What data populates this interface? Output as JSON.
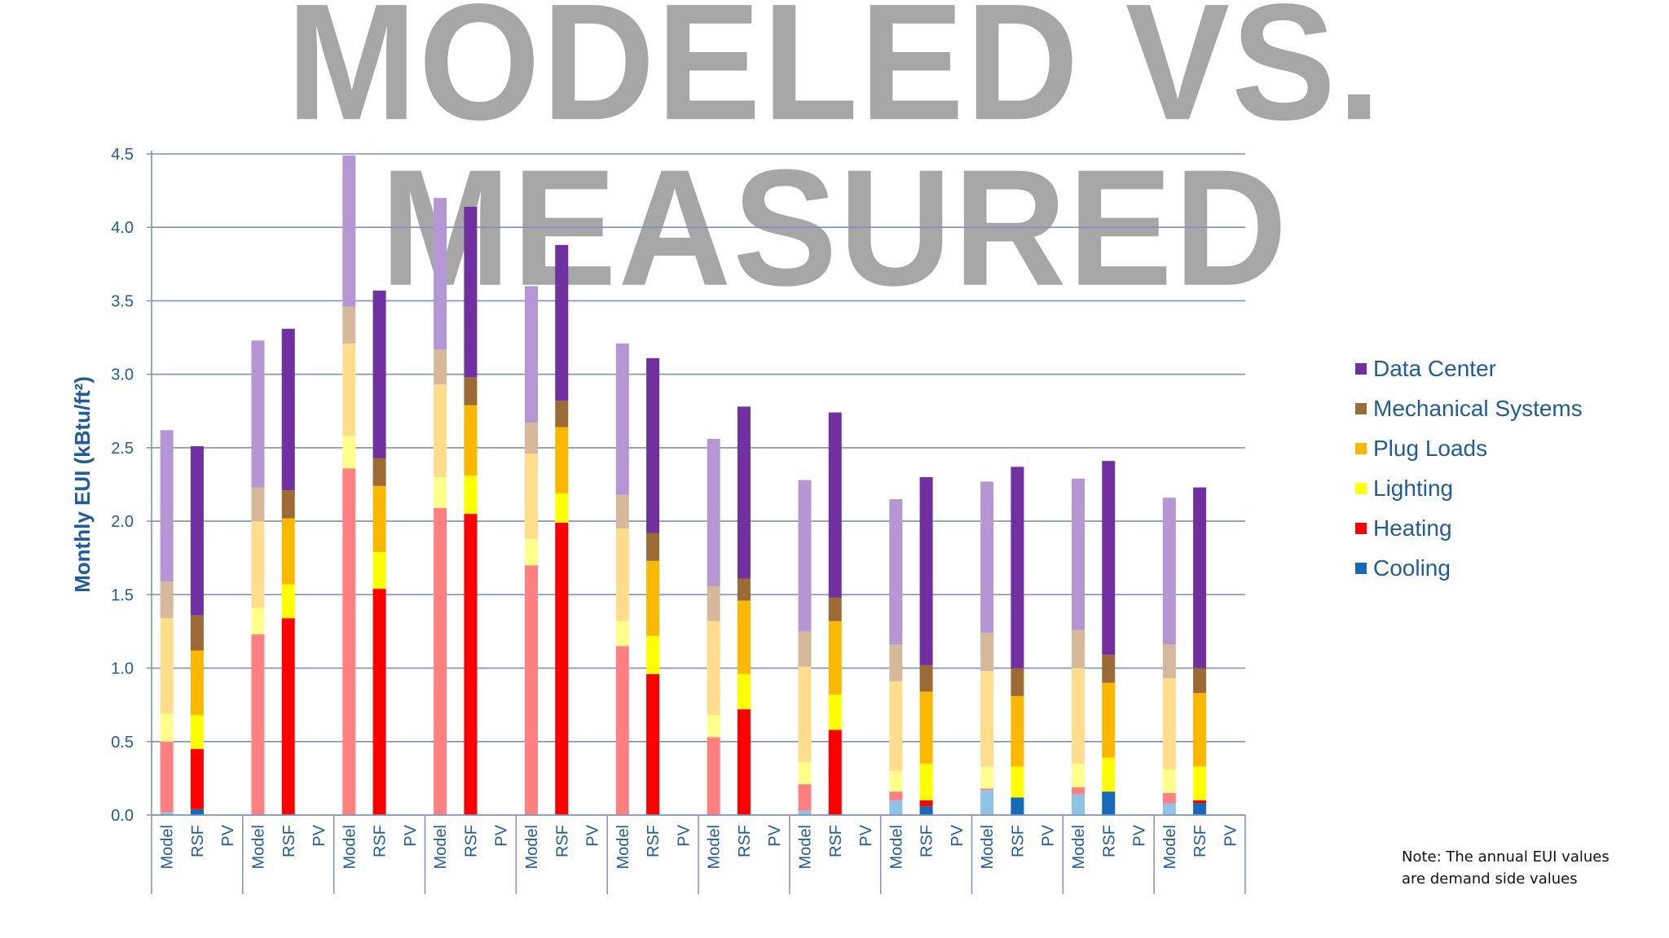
{
  "title": "MODELED VS. MEASURED",
  "note": {
    "line1": "Note: The annual EUI values",
    "line2": "are demand side values"
  },
  "colors": {
    "axis": "#1f5c99",
    "grid": "#7f8fbf",
    "measured": {
      "Cooling": "#1668b8",
      "Heating": "#ff0000",
      "Lighting": "#ffff00",
      "Plug Loads": "#fbb800",
      "Mechanical Systems": "#9c6a35",
      "Data Center": "#7030a0"
    },
    "modeled": {
      "Cooling": "#8ec2e6",
      "Heating": "#ff8080",
      "Lighting": "#ffff8c",
      "Plug Loads": "#ffdd8c",
      "Mechanical Systems": "#d6b89a",
      "Data Center": "#b497d2"
    }
  },
  "legend": [
    {
      "label": "Data Center",
      "color": "#7030a0"
    },
    {
      "label": "Mechanical Systems",
      "color": "#9c6a35"
    },
    {
      "label": "Plug Loads",
      "color": "#fbb800"
    },
    {
      "label": "Lighting",
      "color": "#ffff00"
    },
    {
      "label": "Heating",
      "color": "#ff0000"
    },
    {
      "label": "Cooling",
      "color": "#1668b8"
    }
  ],
  "chart_data": {
    "type": "bar",
    "stacked": true,
    "ylabel": "Monthly EUI (kBtu/ft²)",
    "xlabel": "",
    "ylim": [
      0,
      4.5
    ],
    "yticks": [
      0.0,
      0.5,
      1.0,
      1.5,
      2.0,
      2.5,
      3.0,
      3.5,
      4.0,
      4.5
    ],
    "ytick_labels": [
      "0.0",
      "0.5",
      "1.0",
      "1.5",
      "2.0",
      "2.5",
      "3.0",
      "3.5",
      "4.0",
      "4.5"
    ],
    "bar_labels": [
      "Model",
      "RSF",
      "PV"
    ],
    "series_order": [
      "Cooling",
      "Heating",
      "Lighting",
      "Plug Loads",
      "Mechanical Systems",
      "Data Center"
    ],
    "groups": [
      {
        "Model": [
          0.02,
          0.48,
          0.19,
          0.65,
          0.25,
          1.03
        ],
        "RSF": [
          0.04,
          0.41,
          0.23,
          0.44,
          0.24,
          1.15
        ]
      },
      {
        "Model": [
          0.0,
          1.23,
          0.18,
          0.59,
          0.23,
          1.0
        ],
        "RSF": [
          0.0,
          1.34,
          0.23,
          0.45,
          0.19,
          1.1
        ]
      },
      {
        "Model": [
          0.0,
          2.36,
          0.22,
          0.63,
          0.25,
          1.03
        ],
        "RSF": [
          0.0,
          1.54,
          0.25,
          0.45,
          0.19,
          1.14
        ]
      },
      {
        "Model": [
          0.0,
          2.09,
          0.21,
          0.63,
          0.24,
          1.03
        ],
        "RSF": [
          0.0,
          2.05,
          0.26,
          0.48,
          0.19,
          1.16
        ]
      },
      {
        "Model": [
          0.0,
          1.7,
          0.18,
          0.58,
          0.21,
          0.93
        ],
        "RSF": [
          0.0,
          1.99,
          0.2,
          0.45,
          0.18,
          1.06
        ]
      },
      {
        "Model": [
          0.0,
          1.15,
          0.17,
          0.63,
          0.23,
          1.03
        ],
        "RSF": [
          0.0,
          0.96,
          0.26,
          0.51,
          0.19,
          1.19
        ]
      },
      {
        "Model": [
          0.0,
          0.53,
          0.15,
          0.64,
          0.24,
          1.0
        ],
        "RSF": [
          0.0,
          0.72,
          0.24,
          0.5,
          0.15,
          1.17
        ]
      },
      {
        "Model": [
          0.03,
          0.18,
          0.15,
          0.65,
          0.24,
          1.03
        ],
        "RSF": [
          0.0,
          0.58,
          0.24,
          0.5,
          0.16,
          1.26
        ]
      },
      {
        "Model": [
          0.1,
          0.06,
          0.14,
          0.61,
          0.25,
          0.99
        ],
        "RSF": [
          0.06,
          0.04,
          0.25,
          0.49,
          0.18,
          1.28
        ]
      },
      {
        "Model": [
          0.17,
          0.01,
          0.15,
          0.65,
          0.26,
          1.03
        ],
        "RSF": [
          0.12,
          0.0,
          0.21,
          0.48,
          0.19,
          1.37
        ]
      },
      {
        "Model": [
          0.14,
          0.05,
          0.16,
          0.65,
          0.26,
          1.03
        ],
        "RSF": [
          0.16,
          0.0,
          0.23,
          0.51,
          0.19,
          1.32
        ]
      },
      {
        "Model": [
          0.08,
          0.07,
          0.16,
          0.62,
          0.23,
          1.0
        ],
        "RSF": [
          0.08,
          0.02,
          0.23,
          0.5,
          0.17,
          1.23
        ]
      }
    ]
  }
}
